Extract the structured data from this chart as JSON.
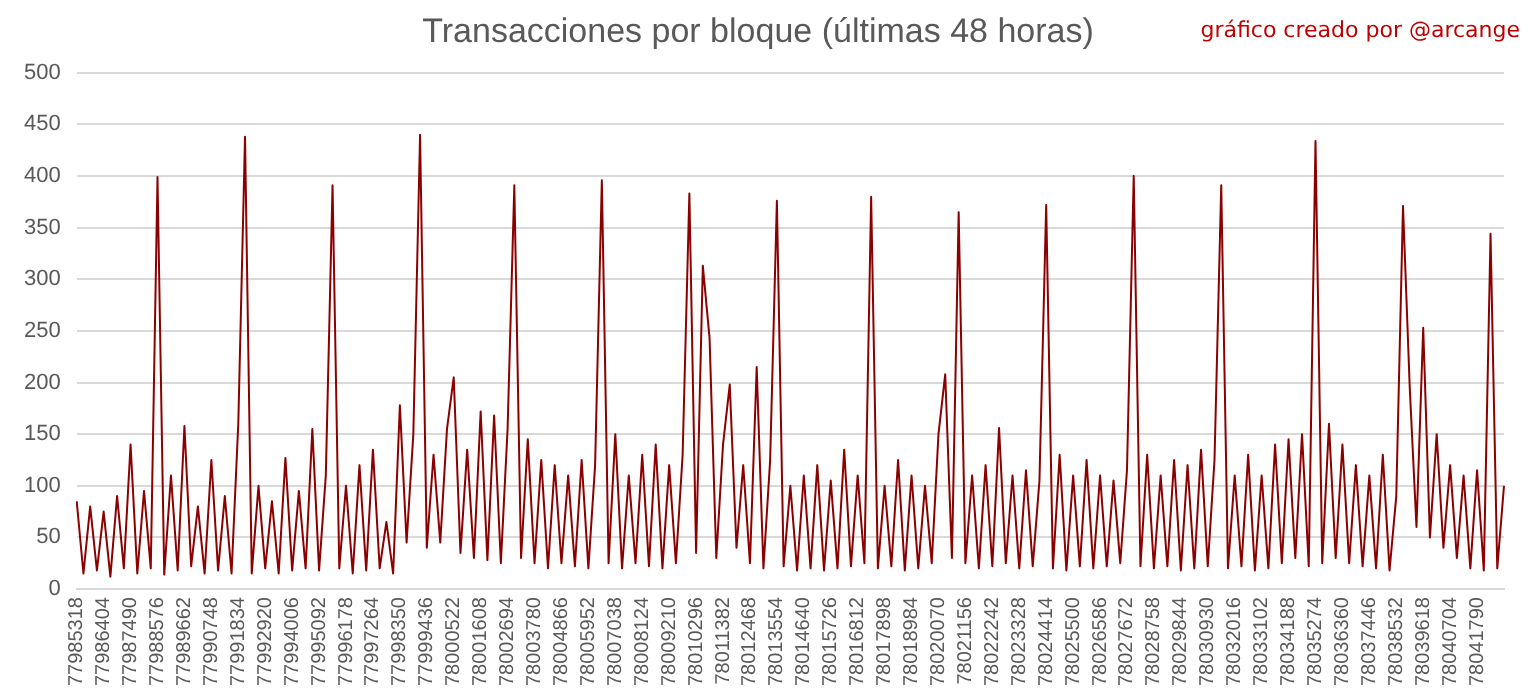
{
  "chart_data": {
    "type": "line",
    "title": "Transacciones por bloque (últimas 48 horas)",
    "annotations": [
      "gráfico creado por @arcange"
    ],
    "categories": [
      "77985318",
      null,
      null,
      null,
      "77986404",
      null,
      null,
      null,
      "77987490",
      null,
      null,
      null,
      "77988576",
      null,
      null,
      null,
      "77989662",
      null,
      null,
      null,
      "77990748",
      null,
      null,
      null,
      "77991834",
      null,
      null,
      null,
      "77992920",
      null,
      null,
      null,
      "77994006",
      null,
      null,
      null,
      "77995092",
      null,
      null,
      null,
      "77996178",
      null,
      null,
      null,
      "77997264",
      null,
      null,
      null,
      "77998350",
      null,
      null,
      null,
      "77999436",
      null,
      null,
      null,
      "78000522",
      null,
      null,
      null,
      "78001608",
      null,
      null,
      null,
      "78002694",
      null,
      null,
      null,
      "78003780",
      null,
      null,
      null,
      "78004866",
      null,
      null,
      null,
      "78005952",
      null,
      null,
      null,
      "78007038",
      null,
      null,
      null,
      "78008124",
      null,
      null,
      null,
      "78009210",
      null,
      null,
      null,
      "78010296",
      null,
      null,
      null,
      "78011382",
      null,
      null,
      null,
      "78012468",
      null,
      null,
      null,
      "78013554",
      null,
      null,
      null,
      "78014640",
      null,
      null,
      null,
      "78015726",
      null,
      null,
      null,
      "78016812",
      null,
      null,
      null,
      "78017898",
      null,
      null,
      null,
      "78018984",
      null,
      null,
      null,
      "78020070",
      null,
      null,
      null,
      "78021156",
      null,
      null,
      null,
      "78022242",
      null,
      null,
      null,
      "78023328",
      null,
      null,
      null,
      "78024414",
      null,
      null,
      null,
      "78025500",
      null,
      null,
      null,
      "78026586",
      null,
      null,
      null,
      "78027672",
      null,
      null,
      null,
      "78028758",
      null,
      null,
      null,
      "78029844",
      null,
      null,
      null,
      "78030930",
      null,
      null,
      null,
      "78032016",
      null,
      null,
      null,
      "78033102",
      null,
      null,
      null,
      "78034188",
      null,
      null,
      null,
      "78035274",
      null,
      null,
      null,
      "78036360",
      null,
      null,
      null,
      "78037446",
      null,
      null,
      null,
      "78038532",
      null,
      null,
      null,
      "78039618",
      null,
      null,
      null,
      "78040704",
      null,
      null,
      null,
      "78041790",
      null,
      null,
      null,
      null
    ],
    "series": [
      {
        "color": "#8b0000",
        "values": [
          85,
          15,
          80,
          18,
          75,
          12,
          90,
          20,
          140,
          15,
          95,
          20,
          399,
          14,
          110,
          18,
          158,
          22,
          80,
          15,
          125,
          18,
          90,
          15,
          160,
          438,
          15,
          100,
          20,
          85,
          15,
          127,
          18,
          95,
          20,
          155,
          18,
          110,
          391,
          20,
          100,
          15,
          120,
          18,
          135,
          20,
          65,
          15,
          178,
          45,
          150,
          440,
          40,
          130,
          45,
          155,
          205,
          35,
          135,
          30,
          172,
          28,
          168,
          25,
          155,
          391,
          30,
          145,
          25,
          125,
          20,
          120,
          25,
          110,
          22,
          125,
          20,
          120,
          396,
          25,
          150,
          20,
          110,
          25,
          130,
          22,
          140,
          20,
          120,
          25,
          130,
          383,
          35,
          313,
          243,
          30,
          140,
          198,
          40,
          120,
          25,
          215,
          20,
          125,
          376,
          22,
          100,
          18,
          110,
          20,
          120,
          18,
          105,
          20,
          135,
          22,
          110,
          25,
          380,
          20,
          100,
          22,
          125,
          18,
          110,
          20,
          100,
          25,
          150,
          208,
          30,
          365,
          25,
          110,
          20,
          120,
          22,
          156,
          25,
          110,
          20,
          115,
          22,
          105,
          372,
          20,
          130,
          18,
          110,
          22,
          125,
          20,
          110,
          22,
          105,
          25,
          115,
          400,
          22,
          130,
          20,
          110,
          22,
          125,
          18,
          120,
          20,
          135,
          22,
          125,
          391,
          20,
          110,
          22,
          130,
          18,
          110,
          20,
          140,
          25,
          145,
          30,
          150,
          22,
          434,
          25,
          160,
          30,
          140,
          25,
          120,
          22,
          110,
          20,
          130,
          18,
          90,
          371,
          195,
          60,
          253,
          50,
          150,
          40,
          120,
          30,
          110,
          20,
          115,
          18,
          344,
          20,
          100
        ]
      }
    ],
    "ylim": [
      0,
      500
    ],
    "yticks": [
      0,
      50,
      100,
      150,
      200,
      250,
      300,
      350,
      400,
      450,
      500
    ],
    "grid": "y",
    "legend": false,
    "marker": "none",
    "line_style": "solid"
  }
}
